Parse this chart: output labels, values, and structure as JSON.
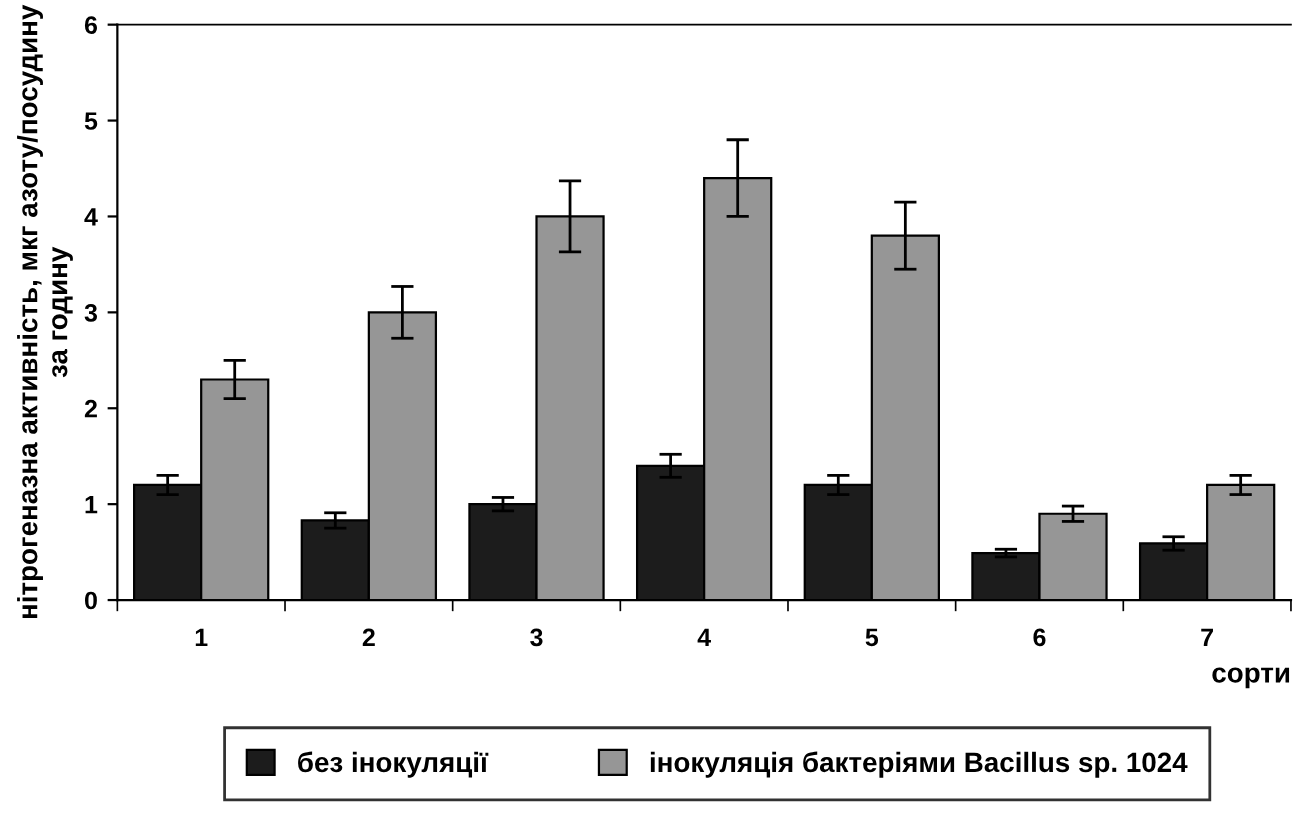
{
  "chart_data": {
    "type": "bar",
    "xlabel": "сорти",
    "ylabel": "нітрогеназна активність, мкг азоту/посудину за годину",
    "categories": [
      "1",
      "2",
      "3",
      "4",
      "5",
      "6",
      "7"
    ],
    "series": [
      {
        "name": "без інокуляції",
        "color": "#1c1c1c",
        "values": [
          1.2,
          0.83,
          1.0,
          1.4,
          1.2,
          0.49,
          0.59
        ],
        "errors": [
          0.1,
          0.08,
          0.07,
          0.12,
          0.1,
          0.04,
          0.07
        ]
      },
      {
        "name": "інокуляція бактеріями Bacillus sp. 1024",
        "color": "#969696",
        "values": [
          2.3,
          3.0,
          4.0,
          4.4,
          3.8,
          0.9,
          1.2
        ],
        "errors": [
          0.2,
          0.27,
          0.37,
          0.4,
          0.35,
          0.08,
          0.1
        ]
      }
    ],
    "ylim": [
      0,
      6
    ],
    "yticks": [
      0,
      1,
      2,
      3,
      4,
      5,
      6
    ],
    "grid": false,
    "legend": "bottom"
  }
}
